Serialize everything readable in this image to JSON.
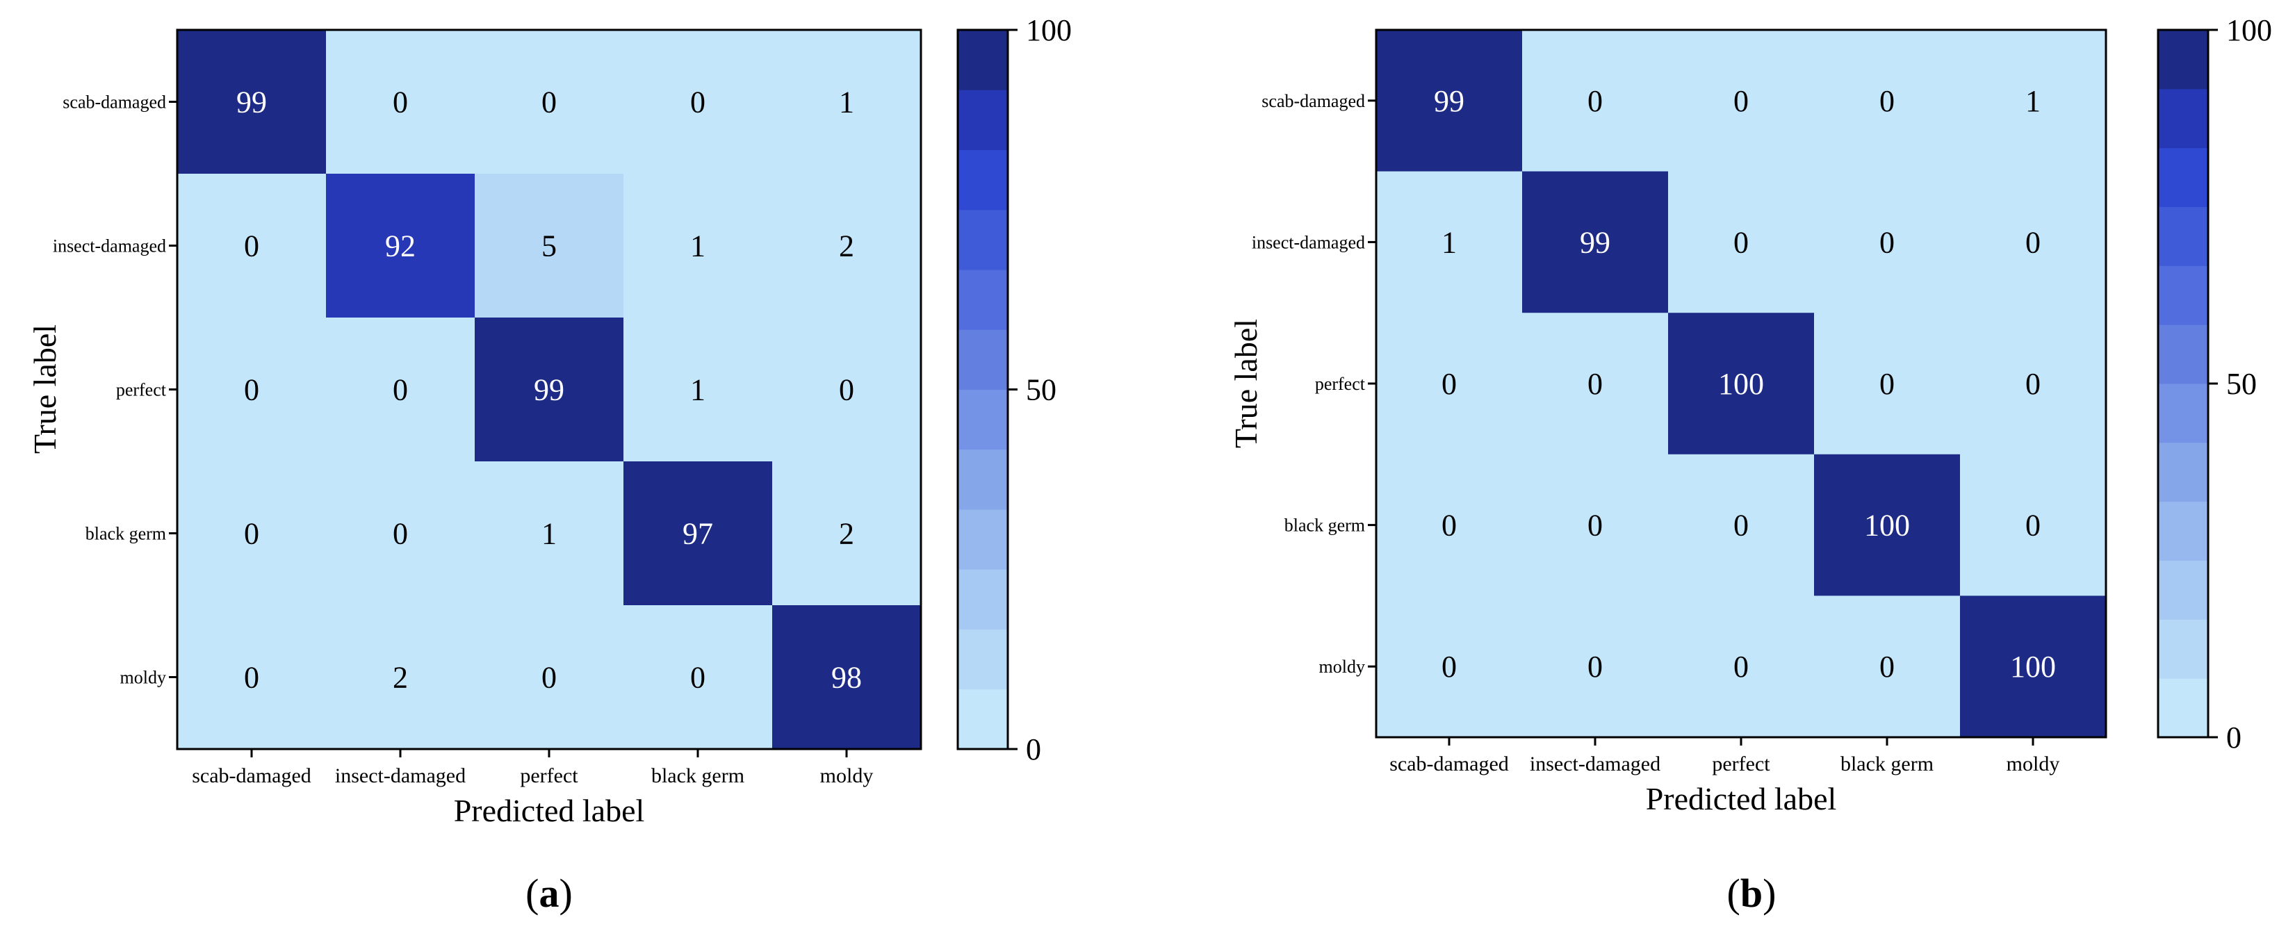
{
  "chart_data": [
    {
      "type": "heatmap",
      "panel_label": "a",
      "xlabel": "Predicted label",
      "ylabel": "True label",
      "x_categories": [
        "scab-damaged",
        "insect-damaged",
        "perfect",
        "black germ",
        "moldy"
      ],
      "y_categories": [
        "scab-damaged",
        "insect-damaged",
        "perfect",
        "black germ",
        "moldy"
      ],
      "values": [
        [
          99,
          0,
          0,
          0,
          1
        ],
        [
          0,
          92,
          5,
          1,
          2
        ],
        [
          0,
          0,
          99,
          1,
          0
        ],
        [
          0,
          0,
          1,
          97,
          2
        ],
        [
          0,
          2,
          0,
          0,
          98
        ]
      ],
      "colorbar": {
        "range": [
          0,
          100
        ],
        "ticks": [
          0,
          50,
          100
        ],
        "levels": 12
      }
    },
    {
      "type": "heatmap",
      "panel_label": "b",
      "xlabel": "Predicted label",
      "ylabel": "True label",
      "x_categories": [
        "scab-damaged",
        "insect-damaged",
        "perfect",
        "black germ",
        "moldy"
      ],
      "y_categories": [
        "scab-damaged",
        "insect-damaged",
        "perfect",
        "black germ",
        "moldy"
      ],
      "values": [
        [
          99,
          0,
          0,
          0,
          1
        ],
        [
          1,
          99,
          0,
          0,
          0
        ],
        [
          0,
          0,
          100,
          0,
          0
        ],
        [
          0,
          0,
          0,
          100,
          0
        ],
        [
          0,
          0,
          0,
          0,
          100
        ]
      ],
      "colorbar": {
        "range": [
          0,
          100
        ],
        "ticks": [
          0,
          50,
          100
        ],
        "levels": 12
      }
    }
  ],
  "colors": {
    "low": "#c4e6fb",
    "high": "#1d2b87",
    "levels": [
      "#c4e6fb",
      "#b5d8f7",
      "#a6c9f3",
      "#96b8ef",
      "#86a6ea",
      "#7593e6",
      "#6380e1",
      "#526ddd",
      "#405bd8",
      "#2f49d3",
      "#2638b6",
      "#1d2b87"
    ]
  }
}
